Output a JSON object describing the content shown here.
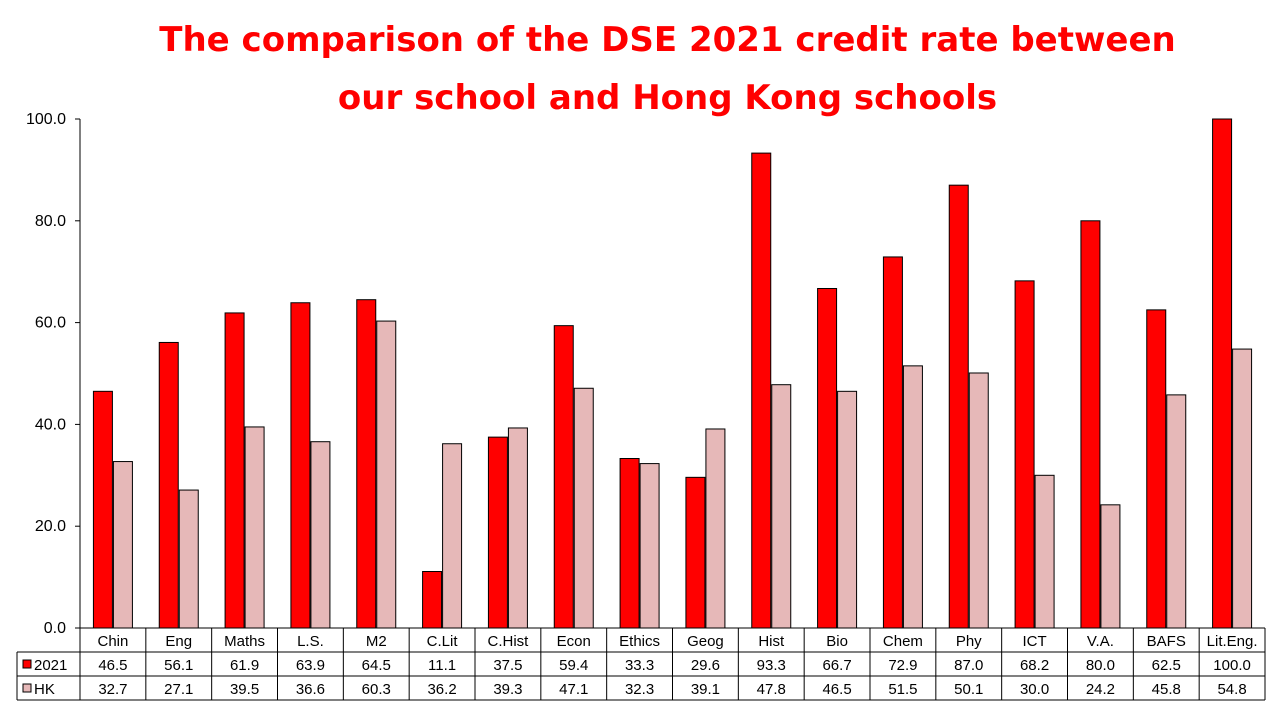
{
  "chart_data": {
    "type": "bar",
    "title_lines": [
      "The comparison of the DSE 2021 credit rate between",
      "our school and Hong Kong schools"
    ],
    "categories": [
      "Chin",
      "Eng",
      "Maths",
      "L.S.",
      "M2",
      "C.Lit",
      "C.Hist",
      "Econ",
      "Ethics",
      "Geog",
      "Hist",
      "Bio",
      "Chem",
      "Phy",
      "ICT",
      "V.A.",
      "BAFS",
      "Lit.Eng."
    ],
    "series": [
      {
        "name": "2021",
        "color": "#ff0000",
        "values": [
          46.5,
          56.1,
          61.9,
          63.9,
          64.5,
          11.1,
          37.5,
          59.4,
          33.3,
          29.6,
          93.3,
          66.7,
          72.9,
          87.0,
          68.2,
          80.0,
          62.5,
          100.0
        ]
      },
      {
        "name": "HK",
        "color": "#e6b8b8",
        "values": [
          32.7,
          27.1,
          39.5,
          36.6,
          60.3,
          36.2,
          39.3,
          47.1,
          32.3,
          39.1,
          47.8,
          46.5,
          51.5,
          50.1,
          30.0,
          24.2,
          45.8,
          54.8
        ]
      }
    ],
    "ylim": [
      0,
      100
    ],
    "yticks": [
      "0.0",
      "20.0",
      "40.0",
      "60.0",
      "80.0",
      "100.0"
    ],
    "data_table": true,
    "grid": false
  }
}
